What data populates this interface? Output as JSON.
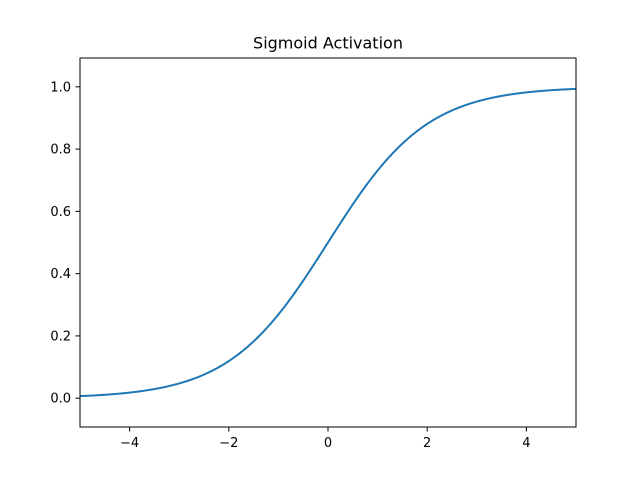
{
  "chart_data": {
    "type": "line",
    "title": "Sigmoid Activation",
    "xlabel": "",
    "ylabel": "",
    "xlim": [
      -5,
      5
    ],
    "ylim": [
      -0.0925,
      1.0925
    ],
    "grid": false,
    "x_ticks": [
      {
        "value": -4,
        "label": "−4"
      },
      {
        "value": -2,
        "label": "−2"
      },
      {
        "value": 0,
        "label": "0"
      },
      {
        "value": 2,
        "label": "2"
      },
      {
        "value": 4,
        "label": "4"
      }
    ],
    "y_ticks": [
      {
        "value": 0.0,
        "label": "0.0"
      },
      {
        "value": 0.2,
        "label": "0.2"
      },
      {
        "value": 0.4,
        "label": "0.4"
      },
      {
        "value": 0.6,
        "label": "0.6"
      },
      {
        "value": 0.8,
        "label": "0.8"
      },
      {
        "value": 1.0,
        "label": "1.0"
      }
    ],
    "series": [
      {
        "color": "#1f77b4",
        "x": [
          -5,
          -4.5,
          -4,
          -3.5,
          -3,
          -2.5,
          -2,
          -1.5,
          -1,
          -0.5,
          0,
          0.5,
          1,
          1.5,
          2,
          2.5,
          3,
          3.5,
          4,
          4.5,
          5
        ],
        "y": [
          0.0067,
          0.011,
          0.018,
          0.0293,
          0.0474,
          0.0759,
          0.1192,
          0.1824,
          0.2689,
          0.3775,
          0.5,
          0.6225,
          0.7311,
          0.8176,
          0.8808,
          0.9241,
          0.9526,
          0.9707,
          0.982,
          0.989,
          0.9933
        ]
      }
    ]
  }
}
